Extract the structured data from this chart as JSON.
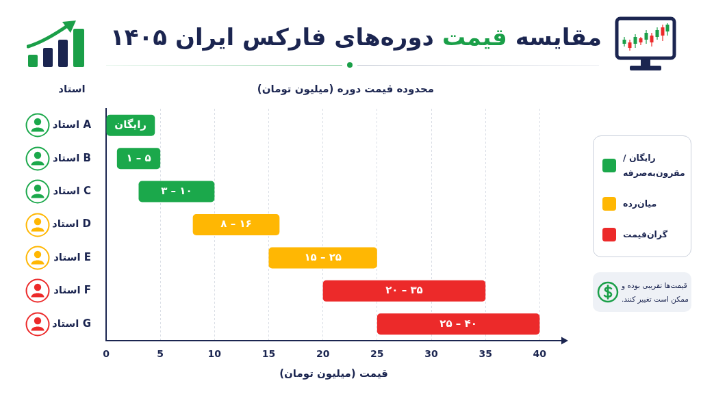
{
  "chart_data": {
    "type": "bar",
    "orientation": "horizontal",
    "title": "مقایسه قیمت دوره‌های فارکس ایران ۱۴۰۵",
    "subtitle": "محدوده قیمت دوره (میلیون تومان)",
    "xlabel": "قیمت (میلیون تومان)",
    "ylabel": "استاد",
    "categories": [
      "استاد A",
      "استاد B",
      "استاد C",
      "استاد D",
      "استاد E",
      "استاد F",
      "استاد G"
    ],
    "series": [
      {
        "name": "رایگان / مقرون‌به‌صرفه",
        "color": "#1ba84b",
        "base": [
          0,
          1,
          3,
          null,
          null,
          null,
          null
        ],
        "values": [
          4.5,
          4,
          7,
          null,
          null,
          null,
          null
        ]
      },
      {
        "name": "میان‌رده",
        "color": "#ffb703",
        "base": [
          null,
          null,
          null,
          8,
          15,
          null,
          null
        ],
        "values": [
          null,
          null,
          null,
          8,
          10,
          null,
          null
        ]
      },
      {
        "name": "گران‌قیمت",
        "color": "#ec2a2a",
        "base": [
          null,
          null,
          null,
          null,
          null,
          20,
          25
        ],
        "values": [
          null,
          null,
          null,
          null,
          null,
          15,
          15
        ]
      }
    ],
    "xlim": [
      0,
      42
    ],
    "xticks": [
      0,
      5,
      10,
      15,
      20,
      25,
      30,
      35,
      40
    ],
    "grid": "x",
    "legend": "right",
    "annotations": [
      {
        "text": "رایگان",
        "x": 2.25,
        "y": "استاد A"
      },
      {
        "text": "۱ – ۵",
        "x": 3,
        "y": "استاد B"
      },
      {
        "text": "۳ – ۱۰",
        "x": 6.5,
        "y": "استاد C"
      },
      {
        "text": "۸ – ۱۶",
        "x": 12,
        "y": "استاد D"
      },
      {
        "text": "۱۵ – ۲۵",
        "x": 20,
        "y": "استاد E"
      },
      {
        "text": "۲۰ – ۳۵",
        "x": 27.5,
        "y": "استاد F"
      },
      {
        "text": "۲۵ – ۴۰",
        "x": 32.5,
        "y": "استاد G"
      },
      "قیمت‌ها تقریبی بوده و ممکن است تغییر کنند."
    ]
  }
}
